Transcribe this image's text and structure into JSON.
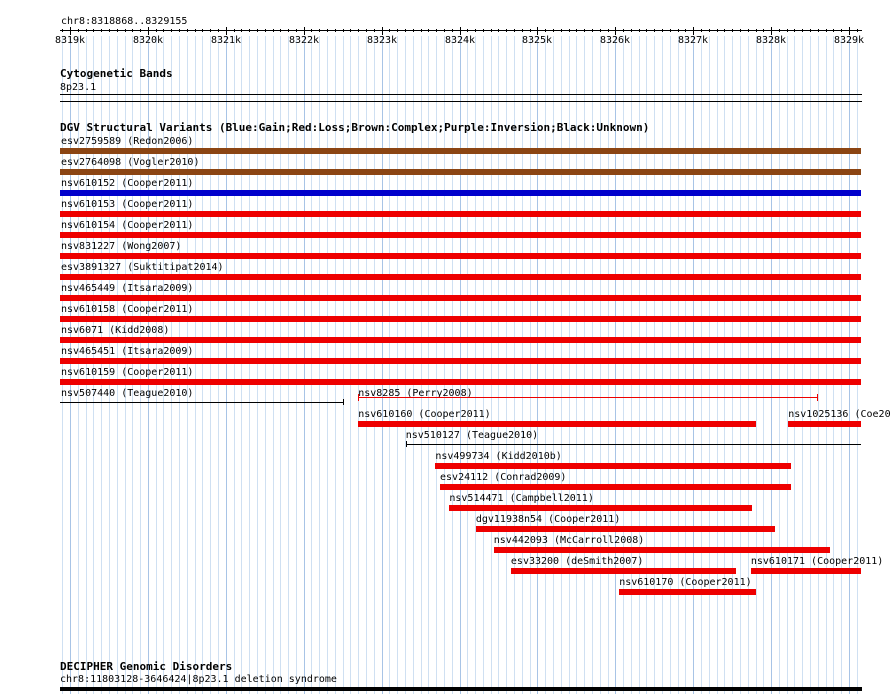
{
  "ruler": {
    "region_label": "chr8:8318868..8329155",
    "ticks": [
      "8319k",
      "8320k",
      "8321k",
      "8322k",
      "8323k",
      "8324k",
      "8325k",
      "8326k",
      "8327k",
      "8328k",
      "8329k"
    ]
  },
  "tracks": {
    "cytoband": {
      "title": "Cytogenetic Bands",
      "feature_label": "8p23.1"
    },
    "dgv": {
      "title": "DGV Structural Variants (Blue:Gain;Red:Loss;Brown:Complex;Purple:Inversion;Black:Unknown)",
      "colors": {
        "gain": "#0000cc",
        "loss": "#ee0000",
        "complex": "#8b4513",
        "unknown": "#000000"
      },
      "features": [
        {
          "label": "esv2759589 (Redon2006)",
          "type": "complex",
          "start": 8318868,
          "end": 8329155
        },
        {
          "label": "esv2764098 (Vogler2010)",
          "type": "complex",
          "start": 8318868,
          "end": 8329155
        },
        {
          "label": "nsv610152 (Cooper2011)",
          "type": "gain",
          "start": 8318868,
          "end": 8329155
        },
        {
          "label": "nsv610153 (Cooper2011)",
          "type": "loss",
          "start": 8318868,
          "end": 8329155
        },
        {
          "label": "nsv610154 (Cooper2011)",
          "type": "loss",
          "start": 8318868,
          "end": 8329155
        },
        {
          "label": "nsv831227 (Wong2007)",
          "type": "loss",
          "start": 8318868,
          "end": 8329155
        },
        {
          "label": "esv3891327 (Suktitipat2014)",
          "type": "loss",
          "start": 8318868,
          "end": 8329155
        },
        {
          "label": "nsv465449 (Itsara2009)",
          "type": "loss",
          "start": 8318868,
          "end": 8329155
        },
        {
          "label": "nsv610158 (Cooper2011)",
          "type": "loss",
          "start": 8318868,
          "end": 8329155
        },
        {
          "label": "nsv6071 (Kidd2008)",
          "type": "loss",
          "start": 8318868,
          "end": 8329155
        },
        {
          "label": "nsv465451 (Itsara2009)",
          "type": "loss",
          "start": 8318868,
          "end": 8329155
        },
        {
          "label": "nsv610159 (Cooper2011)",
          "type": "loss",
          "start": 8318868,
          "end": 8329155
        },
        {
          "label": "nsv507440 (Teague2010)",
          "type": "unknown",
          "start": 8318868,
          "end": 8322520
        },
        {
          "label": "nsv8285 (Perry2008)",
          "type": "loss_thin",
          "start": 8322700,
          "end": 8328590
        },
        {
          "label": "nsv610160 (Cooper2011)",
          "type": "loss",
          "start": 8322700,
          "end": 8327800
        },
        {
          "label": "nsv1025136 (Coe20",
          "type": "loss",
          "start": 8328220,
          "end": 8329155
        },
        {
          "label": "nsv510127 (Teague2010)",
          "type": "unknown",
          "start": 8323310,
          "end": 8329155
        },
        {
          "label": "nsv499734 (Kidd2010b)",
          "type": "loss",
          "start": 8323690,
          "end": 8328250
        },
        {
          "label": "esv24112 (Conrad2009)",
          "type": "loss",
          "start": 8323750,
          "end": 8328250
        },
        {
          "label": "nsv514471 (Campbell2011)",
          "type": "loss",
          "start": 8323870,
          "end": 8327760
        },
        {
          "label": "dgv11938n54 (Cooper2011)",
          "type": "loss",
          "start": 8324210,
          "end": 8328050
        },
        {
          "label": "nsv442093 (McCarroll2008)",
          "type": "loss",
          "start": 8324440,
          "end": 8328760
        },
        {
          "label": "esv33200 (deSmith2007)",
          "type": "loss",
          "start": 8324660,
          "end": 8327550
        },
        {
          "label": "nsv610171 (Cooper2011)",
          "type": "loss",
          "start": 8327740,
          "end": 8329155
        },
        {
          "label": "nsv610170 (Cooper2011)",
          "type": "loss",
          "start": 8326050,
          "end": 8327800
        }
      ]
    },
    "decipher": {
      "title": "DECIPHER Genomic Disorders",
      "feature_label": "chr8:11803128-3646424|8p23.1 deletion syndrome"
    }
  }
}
